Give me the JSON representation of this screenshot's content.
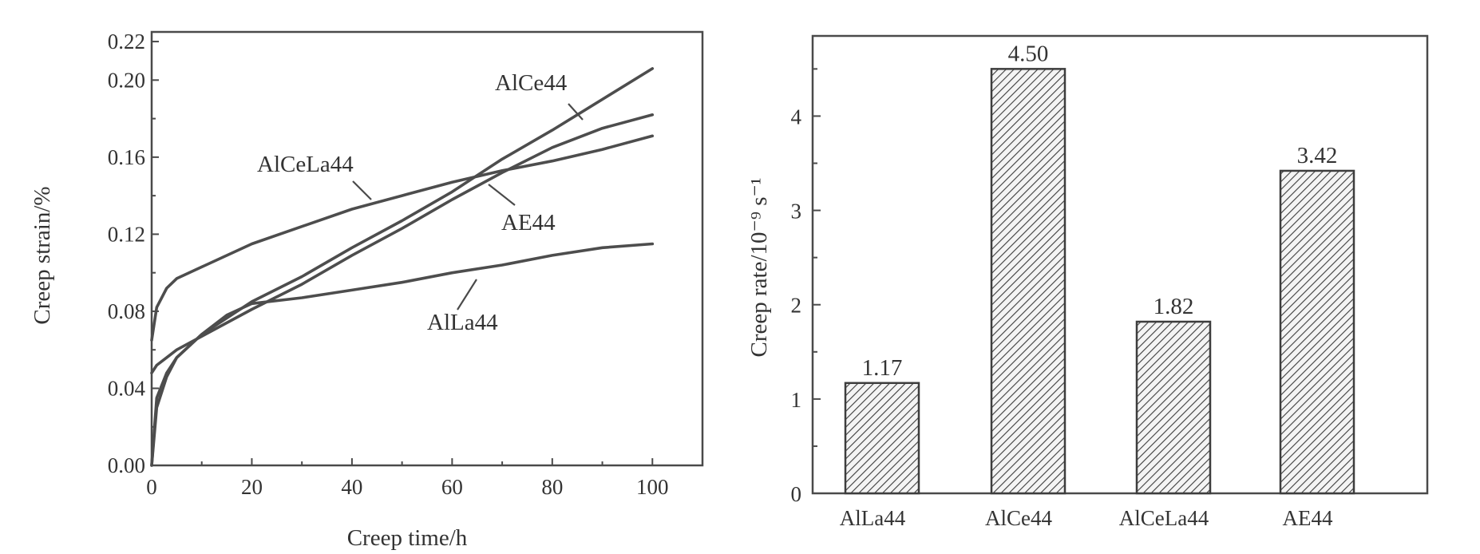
{
  "chart_data": [
    {
      "type": "line",
      "xlabel": "Creep time/h",
      "ylabel": "Creep strain/%",
      "xlim": [
        0,
        110
      ],
      "ylim": [
        0,
        0.225
      ],
      "x_ticks": [
        "0",
        "20",
        "40",
        "60",
        "80",
        "100"
      ],
      "y_ticks": [
        "0.00",
        "0.04",
        "0.08",
        "0.12",
        "0.16",
        "0.20",
        "0.22"
      ],
      "series": [
        {
          "name": "AlCeLa44",
          "x": [
            0,
            1,
            3,
            5,
            10,
            20,
            30,
            40,
            50,
            60,
            70,
            80,
            90,
            100
          ],
          "y": [
            0.065,
            0.082,
            0.092,
            0.097,
            0.103,
            0.115,
            0.124,
            0.133,
            0.14,
            0.147,
            0.153,
            0.158,
            0.164,
            0.171
          ]
        },
        {
          "name": "AlCe44",
          "x": [
            0,
            1,
            3,
            5,
            10,
            20,
            30,
            40,
            50,
            60,
            70,
            80,
            90,
            100
          ],
          "y": [
            0.0,
            0.03,
            0.046,
            0.056,
            0.068,
            0.085,
            0.098,
            0.113,
            0.127,
            0.142,
            0.159,
            0.174,
            0.19,
            0.206
          ]
        },
        {
          "name": "AE44",
          "x": [
            0,
            1,
            3,
            5,
            10,
            20,
            30,
            40,
            50,
            60,
            70,
            80,
            90,
            100
          ],
          "y": [
            0.048,
            0.052,
            0.056,
            0.06,
            0.067,
            0.081,
            0.094,
            0.109,
            0.123,
            0.138,
            0.152,
            0.165,
            0.175,
            0.182
          ]
        },
        {
          "name": "AlLa44",
          "x": [
            0,
            1,
            3,
            5,
            10,
            15,
            20,
            30,
            40,
            50,
            60,
            70,
            80,
            90,
            100
          ],
          "y": [
            0.0,
            0.035,
            0.048,
            0.056,
            0.068,
            0.078,
            0.084,
            0.087,
            0.091,
            0.095,
            0.1,
            0.104,
            0.109,
            0.113,
            0.115
          ]
        }
      ]
    },
    {
      "type": "bar",
      "xlabel": "",
      "ylabel": "Creep rate/10⁻⁹ s⁻¹",
      "ylim": [
        0,
        4.85
      ],
      "y_ticks": [
        "0",
        "1",
        "2",
        "3",
        "4"
      ],
      "categories": [
        "AlLa44",
        "AlCe44",
        "AlCeLa44",
        "AE44"
      ],
      "values": [
        1.17,
        4.5,
        1.82,
        3.42
      ],
      "value_labels": [
        "1.17",
        "4.50",
        "1.82",
        "3.42"
      ],
      "pattern": "diagonal hatch"
    }
  ]
}
